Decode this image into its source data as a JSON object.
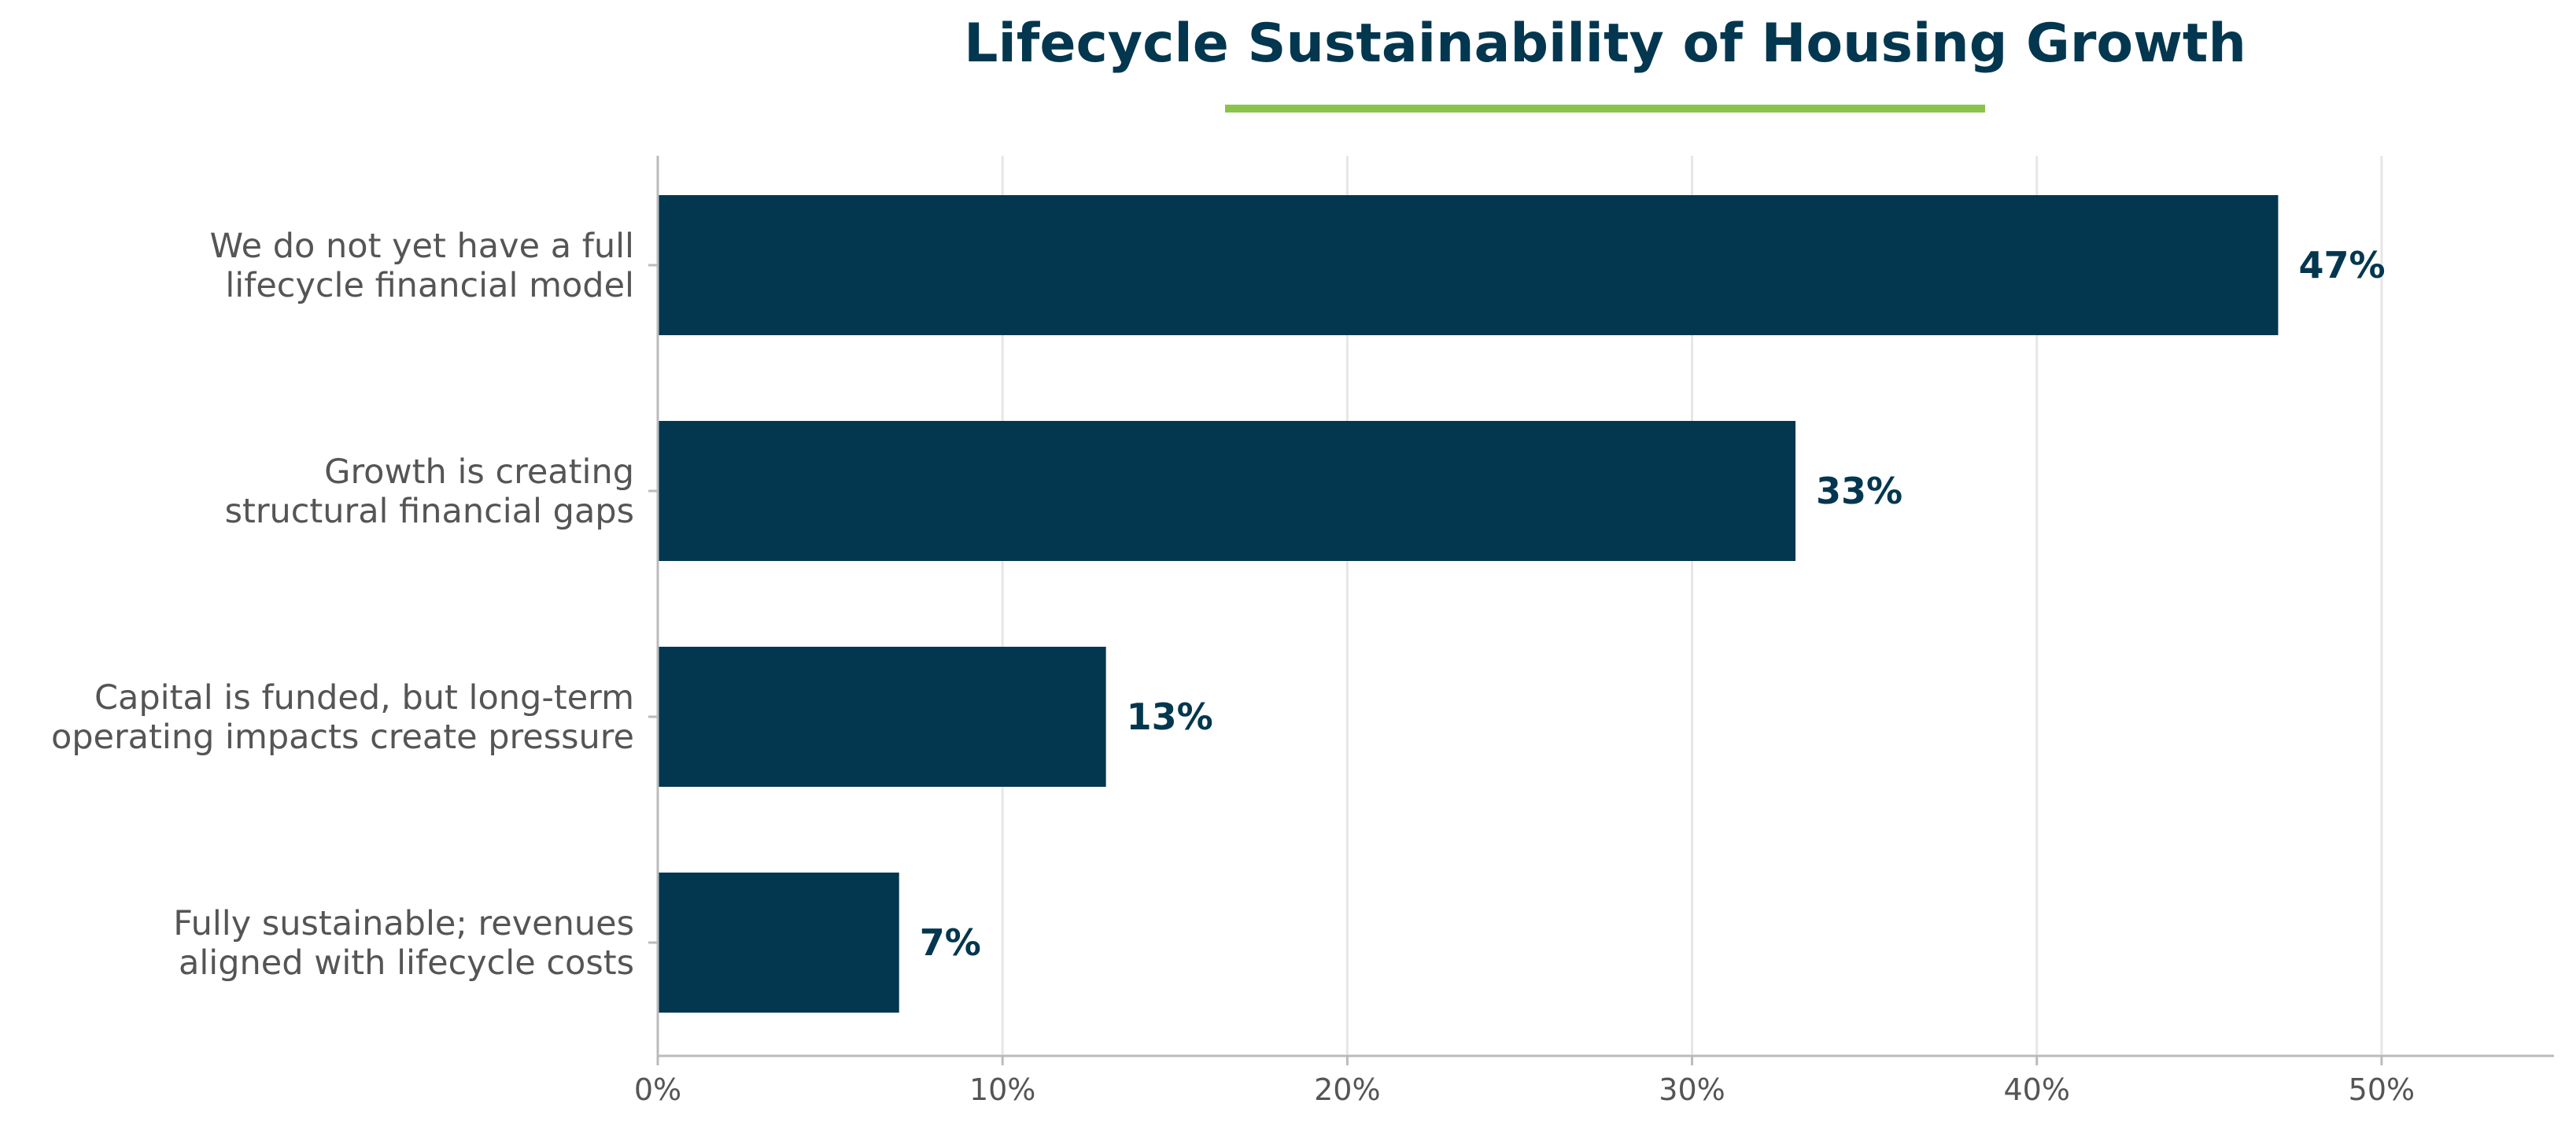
{
  "chart_data": {
    "type": "bar",
    "orientation": "horizontal",
    "title": "Lifecycle Sustainability of Housing Growth",
    "xlabel": "",
    "ylabel": "",
    "categories": [
      [
        "We do not yet have a full",
        "lifecycle financial model"
      ],
      [
        "Growth is creating",
        "structural financial gaps"
      ],
      [
        "Capital is funded, but long-term",
        "operating impacts create pressure"
      ],
      [
        "Fully sustainable; revenues",
        "aligned with lifecycle costs"
      ]
    ],
    "values": [
      47,
      33,
      13,
      7
    ],
    "data_labels": [
      "47%",
      "33%",
      "13%",
      "7%"
    ],
    "xlim": [
      0,
      55
    ],
    "xticks": [
      0,
      10,
      20,
      30,
      40,
      50
    ],
    "xtick_labels": [
      "0%",
      "10%",
      "20%",
      "30%",
      "40%",
      "50%"
    ],
    "grid": "vertical",
    "legend": "none",
    "colors": {
      "bar": "#03374f",
      "title": "#03374f",
      "title_underline": "#8bc34a",
      "data_label": "#03374f",
      "gridline": "#e6e6e6",
      "axis": "#bbbbbb",
      "label_text": "#555555"
    }
  }
}
